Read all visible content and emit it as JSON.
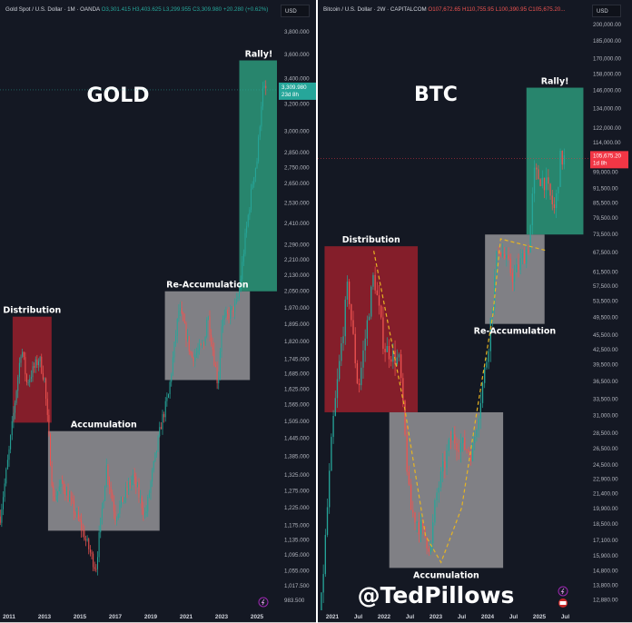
{
  "colors": {
    "background": "#141823",
    "up": "#26a69a",
    "down": "#ef5350",
    "distribution": "#8e1f2b",
    "accumulation": "#8a8a8e",
    "rally": "#2a8f74",
    "curve": "#e6b422"
  },
  "watermark": "@TedPillows",
  "chart_data": [
    {
      "type": "candlestick",
      "title": "GOLD",
      "header": {
        "symbol": "Gold Spot / U.S. Dollar · 1M · OANDA",
        "open": "O3,301.415",
        "high": "H3,403.625",
        "low": "L3,299.955",
        "close": "C3,309.980",
        "change": "+20.280 (+0.62%)"
      },
      "currency": "USD",
      "y_scale": "log",
      "y_ticks": [
        "3,800.000",
        "3,600.000",
        "3,400.000",
        "3,200.000",
        "3,000.000",
        "2,850.000",
        "2,750.000",
        "2,650.000",
        "2,530.000",
        "2,410.000",
        "2,290.000",
        "2,210.000",
        "2,130.000",
        "2,050.000",
        "1,970.000",
        "1,895.000",
        "1,820.000",
        "1,745.000",
        "1,685.000",
        "1,625.000",
        "1,565.000",
        "1,505.000",
        "1,445.000",
        "1,385.000",
        "1,325.000",
        "1,275.000",
        "1,225.000",
        "1,175.000",
        "1,135.000",
        "1,095.000",
        "1,055.000",
        "1,017.500",
        "983.500"
      ],
      "y_tick_values": [
        3800,
        3600,
        3400,
        3200,
        3000,
        2850,
        2750,
        2650,
        2530,
        2410,
        2290,
        2210,
        2130,
        2050,
        1970,
        1895,
        1820,
        1745,
        1685,
        1625,
        1565,
        1505,
        1445,
        1385,
        1325,
        1275,
        1225,
        1175,
        1135,
        1095,
        1055,
        1017.5,
        983.5
      ],
      "x_ticks": [
        "2011",
        "2013",
        "2015",
        "2017",
        "2019",
        "2021",
        "2023",
        "2025"
      ],
      "x_tick_values": [
        2011,
        2013,
        2015,
        2017,
        2019,
        2021,
        2023,
        2025
      ],
      "last_price": {
        "value": 3309.98,
        "label": "3,309.980",
        "countdown": "23d 8h"
      },
      "price_path": [
        [
          2010.5,
          1200
        ],
        [
          2011,
          1400
        ],
        [
          2011.7,
          1800
        ],
        [
          2012,
          1650
        ],
        [
          2012.7,
          1750
        ],
        [
          2013,
          1660
        ],
        [
          2013.5,
          1250
        ],
        [
          2014,
          1300
        ],
        [
          2015,
          1180
        ],
        [
          2015.9,
          1060
        ],
        [
          2016.5,
          1350
        ],
        [
          2017,
          1200
        ],
        [
          2018,
          1320
        ],
        [
          2018.7,
          1200
        ],
        [
          2019,
          1300
        ],
        [
          2019.6,
          1500
        ],
        [
          2020,
          1600
        ],
        [
          2020.6,
          1970
        ],
        [
          2021,
          1850
        ],
        [
          2021.3,
          1750
        ],
        [
          2022,
          1800
        ],
        [
          2022.2,
          1950
        ],
        [
          2022.8,
          1640
        ],
        [
          2023,
          1900
        ],
        [
          2023.8,
          1980
        ],
        [
          2024,
          2050
        ],
        [
          2024.3,
          2300
        ],
        [
          2024.8,
          2700
        ],
        [
          2025,
          2800
        ],
        [
          2025.3,
          3300
        ],
        [
          2025.5,
          3310
        ]
      ],
      "zones": [
        {
          "label": "Distribution",
          "kind": "distribution",
          "x": [
            2011.2,
            2013.4
          ],
          "y": [
            1500,
            1930
          ]
        },
        {
          "label": "Accumulation",
          "kind": "accumulation",
          "x": [
            2013.2,
            2019.5
          ],
          "y": [
            1160,
            1470
          ]
        },
        {
          "label": "Re-Accumulation",
          "kind": "accumulation",
          "x": [
            2019.8,
            2024.6
          ],
          "y": [
            1660,
            2050
          ]
        },
        {
          "label": "Rally!",
          "kind": "rally",
          "x": [
            2024.0,
            2026.2
          ],
          "y": [
            2050,
            3550
          ]
        }
      ]
    },
    {
      "type": "candlestick",
      "title": "BTC",
      "header": {
        "symbol": "Bitcoin / U.S. Dollar · 2W · CAPITALCOM",
        "open": "O107,672.65",
        "high": "H110,755.95",
        "low": "L100,390.95",
        "close": "C105,675.20..."
      },
      "currency": "USD",
      "y_scale": "log",
      "y_ticks": [
        "200,000.00",
        "185,000.00",
        "170,000.00",
        "158,000.00",
        "146,000.00",
        "134,000.00",
        "122,000.00",
        "114,000.00",
        "99,000.00",
        "91,500.00",
        "85,500.00",
        "79,500.00",
        "73,500.00",
        "67,500.00",
        "61,500.00",
        "57,500.00",
        "53,500.00",
        "49,500.00",
        "45,500.00",
        "42,500.00",
        "39,500.00",
        "36,500.00",
        "33,500.00",
        "31,000.00",
        "28,500.00",
        "26,500.00",
        "24,500.00",
        "22,900.00",
        "21,400.00",
        "19,900.00",
        "18,500.00",
        "17,100.00",
        "15,900.00",
        "14,800.00",
        "13,800.00",
        "12,880.00"
      ],
      "y_tick_values": [
        200000,
        185000,
        170000,
        158000,
        146000,
        134000,
        122000,
        114000,
        99000,
        91500,
        85500,
        79500,
        73500,
        67500,
        61500,
        57500,
        53500,
        49500,
        45500,
        42500,
        39500,
        36500,
        33500,
        31000,
        28500,
        26500,
        24500,
        22900,
        21400,
        19900,
        18500,
        17100,
        15900,
        14800,
        13800,
        12880
      ],
      "x_ticks": [
        "2021",
        "Jul",
        "2022",
        "Jul",
        "2023",
        "Jul",
        "2024",
        "Jul",
        "2025",
        "Jul"
      ],
      "x_tick_values": [
        2021,
        2021.5,
        2022,
        2022.5,
        2023,
        2023.5,
        2024,
        2024.5,
        2025,
        2025.5
      ],
      "last_price": {
        "value": 105675.2,
        "label": "105,675.20",
        "countdown": "1d 8h"
      },
      "price_path": [
        [
          2020.75,
          11000
        ],
        [
          2021,
          29000
        ],
        [
          2021.3,
          58000
        ],
        [
          2021.5,
          35000
        ],
        [
          2021.8,
          61000
        ],
        [
          2022,
          43000
        ],
        [
          2022.3,
          40000
        ],
        [
          2022.5,
          20000
        ],
        [
          2022.9,
          16500
        ],
        [
          2023,
          21000
        ],
        [
          2023.3,
          28000
        ],
        [
          2023.7,
          26000
        ],
        [
          2024,
          42000
        ],
        [
          2024.2,
          70000
        ],
        [
          2024.5,
          60000
        ],
        [
          2024.8,
          70000
        ],
        [
          2024.9,
          98000
        ],
        [
          2025.1,
          95000
        ],
        [
          2025.3,
          82000
        ],
        [
          2025.4,
          105000
        ],
        [
          2025.5,
          105675
        ]
      ],
      "zones": [
        {
          "label": "Distribution",
          "kind": "distribution",
          "x": [
            2020.85,
            2022.65
          ],
          "y": [
            31500,
            69500
          ]
        },
        {
          "label": "Accumulation",
          "kind": "accumulation",
          "x": [
            2022.1,
            2024.3
          ],
          "y": [
            15000,
            31500
          ]
        },
        {
          "label": "Re-Accumulation",
          "kind": "accumulation",
          "x": [
            2023.95,
            2025.1
          ],
          "y": [
            48000,
            73500
          ]
        },
        {
          "label": "Rally!",
          "kind": "rally",
          "x": [
            2024.75,
            2025.85
          ],
          "y": [
            73500,
            148000
          ]
        }
      ],
      "curve": [
        [
          2021.8,
          68000
        ],
        [
          2022.4,
          32000
        ],
        [
          2022.8,
          17500
        ],
        [
          2023.1,
          15400
        ],
        [
          2023.5,
          20000
        ],
        [
          2023.8,
          32000
        ],
        [
          2024.1,
          50000
        ],
        [
          2024.25,
          72000
        ],
        [
          2025.15,
          68000
        ]
      ]
    }
  ]
}
